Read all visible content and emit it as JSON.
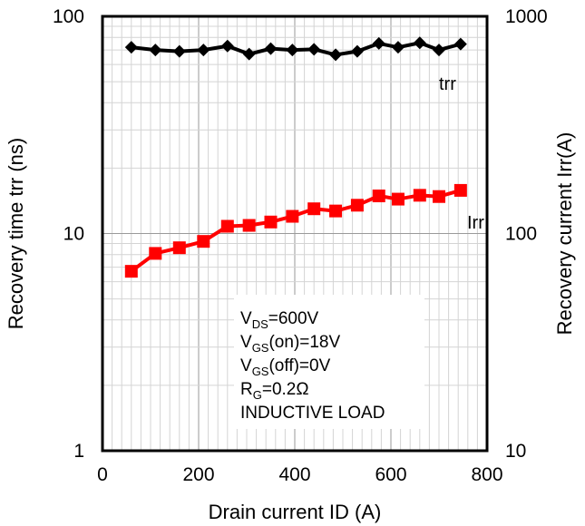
{
  "chart_data": {
    "type": "line",
    "xlabel": "Drain current ID (A)",
    "ylabel_left": "Recovery time trr (ns)",
    "ylabel_right": "Recovery current Irr(A)",
    "xlim": [
      0,
      800
    ],
    "ylim_left": [
      1,
      100
    ],
    "ylim_right": [
      10,
      1000
    ],
    "yscale": "log",
    "grid": true,
    "x_ticks": [
      "0",
      "200",
      "400",
      "600",
      "800"
    ],
    "y_left_ticks": [
      "1",
      "10",
      "100"
    ],
    "y_right_ticks": [
      "10",
      "100",
      "1000"
    ],
    "series": [
      {
        "name": "trr",
        "axis": "left",
        "color": "#000000",
        "marker": "diamond",
        "x": [
          60,
          110,
          160,
          210,
          260,
          305,
          350,
          395,
          440,
          485,
          530,
          575,
          615,
          660,
          700,
          745
        ],
        "y": [
          72,
          70,
          69,
          70,
          73,
          67,
          71,
          70,
          70.5,
          66.5,
          69,
          75,
          72,
          75.5,
          70,
          74.5
        ]
      },
      {
        "name": "Irr",
        "axis": "right",
        "color": "#ff0000",
        "marker": "square",
        "x": [
          60,
          110,
          160,
          210,
          260,
          305,
          350,
          395,
          440,
          485,
          530,
          575,
          615,
          660,
          700,
          745
        ],
        "y": [
          67,
          81,
          86,
          92,
          108,
          109,
          113,
          120,
          130,
          127,
          135,
          149,
          144,
          150,
          148,
          158
        ]
      }
    ],
    "annotation": [
      {
        "main": "V",
        "sub": "DS",
        "rest": "=600V"
      },
      {
        "main": "V",
        "sub": "GS",
        "rest": "(on)=18V"
      },
      {
        "main": "V",
        "sub": "GS",
        "rest": "(off)=0V"
      },
      {
        "main": "R",
        "sub": "G",
        "rest": "=0.2Ω"
      },
      {
        "main": "INDUCTIVE LOAD",
        "sub": "",
        "rest": ""
      }
    ]
  }
}
